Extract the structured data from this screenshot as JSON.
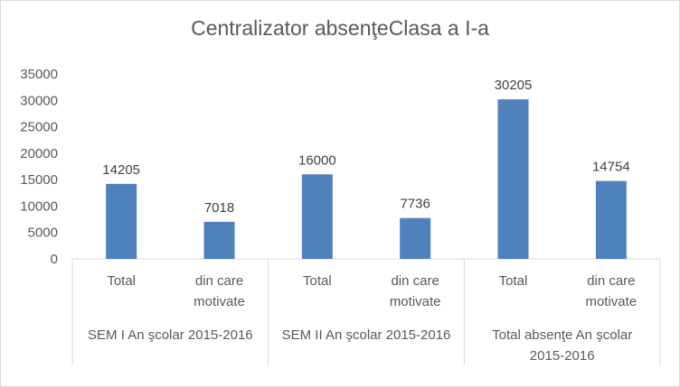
{
  "chart_data": {
    "type": "bar",
    "title": "Centralizator absenţeClasa a I-a",
    "ylim": [
      0,
      35000
    ],
    "yticks": [
      0,
      5000,
      10000,
      15000,
      20000,
      25000,
      30000,
      35000
    ],
    "grid": false,
    "legend": "none",
    "bar_color": "#4f81bd",
    "groups": [
      {
        "label": [
          "SEM I An şcolar 2015-2016"
        ],
        "categories": [
          [
            "Total"
          ],
          [
            "din care",
            "motivate"
          ]
        ],
        "values": [
          14205,
          7018
        ]
      },
      {
        "label": [
          "SEM II An şcolar 2015-2016"
        ],
        "categories": [
          [
            "Total"
          ],
          [
            "din care",
            "motivate"
          ]
        ],
        "values": [
          16000,
          7736
        ]
      },
      {
        "label": [
          "Total absenţe An şcolar",
          "2015-2016"
        ],
        "categories": [
          [
            "Total"
          ],
          [
            "din care",
            "motivate"
          ]
        ],
        "values": [
          30205,
          14754
        ]
      }
    ]
  }
}
